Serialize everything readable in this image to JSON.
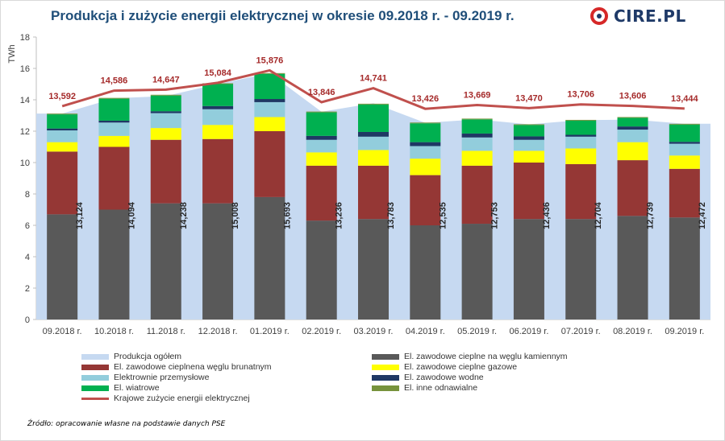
{
  "title": "Produkcja i zużycie energii elektrycznej w okresie 09.2018 r. - 09.2019 r.",
  "logo_text": "CIRE.PL",
  "source": "Źródło: opracowanie własne na podstawie danych PSE",
  "chart_data": {
    "type": "bar",
    "ylabel": "TWh",
    "ylim": [
      0,
      18
    ],
    "yticks": [
      0,
      2,
      4,
      6,
      8,
      10,
      12,
      14,
      16,
      18
    ],
    "grid": false,
    "legend_position": "bottom",
    "categories": [
      "09.2018 r.",
      "10.2018 r.",
      "11.2018 r.",
      "12.2018 r.",
      "01.2019 r.",
      "02.2019 r.",
      "03.2019 r.",
      "04.2019 r.",
      "05.2019 r.",
      "06.2019 r.",
      "07.2019 r.",
      "08.2019 r.",
      "09.2019 r."
    ],
    "area": {
      "name": "Produkcja ogółem",
      "color": "#c6d9f1",
      "values": [
        13.124,
        14.094,
        14.238,
        15.008,
        15.693,
        13.236,
        13.783,
        12.535,
        12.753,
        12.436,
        12.704,
        12.739,
        12.472
      ],
      "labels": [
        "13,124",
        "14,094",
        "14,238",
        "15,008",
        "15,693",
        "13,236",
        "13,783",
        "12,535",
        "12,753",
        "12,436",
        "12,704",
        "12,739",
        "12,472"
      ]
    },
    "stacked_series": [
      {
        "name": "El. zawodowe cieplne na węglu kamiennym",
        "color": "#595959",
        "values": [
          6.7,
          7.0,
          7.4,
          7.4,
          7.8,
          6.3,
          6.4,
          6.0,
          6.1,
          6.4,
          6.4,
          6.6,
          6.5
        ]
      },
      {
        "name": "El. zawodowe cieplnena węglu brunatnym",
        "color": "#953735",
        "values": [
          4.0,
          4.0,
          4.05,
          4.1,
          4.2,
          3.5,
          3.4,
          3.2,
          3.7,
          3.6,
          3.5,
          3.55,
          3.1
        ]
      },
      {
        "name": "El. zawodowe cieplne gazowe",
        "color": "#ffff00",
        "values": [
          0.6,
          0.7,
          0.75,
          0.9,
          0.9,
          0.85,
          1.0,
          1.05,
          0.95,
          0.75,
          1.0,
          1.15,
          0.85
        ]
      },
      {
        "name": "Elektrownie przemysłowe",
        "color": "#92cddc",
        "values": [
          0.75,
          0.85,
          0.95,
          1.0,
          0.95,
          0.8,
          0.85,
          0.8,
          0.85,
          0.7,
          0.75,
          0.8,
          0.75
        ]
      },
      {
        "name": "El. zawodowe wodne",
        "color": "#1f3864",
        "values": [
          0.12,
          0.12,
          0.12,
          0.2,
          0.2,
          0.25,
          0.3,
          0.25,
          0.25,
          0.22,
          0.12,
          0.2,
          0.12
        ]
      },
      {
        "name": "El. wiatrowe",
        "color": "#00b050",
        "values": [
          0.9,
          1.4,
          1.0,
          1.4,
          1.6,
          1.5,
          1.75,
          1.2,
          0.9,
          0.72,
          0.9,
          0.55,
          1.1
        ]
      },
      {
        "name": "El. inne odnawialne",
        "color": "#77933c",
        "values": [
          0.05,
          0.05,
          0.05,
          0.05,
          0.05,
          0.05,
          0.05,
          0.05,
          0.05,
          0.05,
          0.05,
          0.05,
          0.05
        ]
      }
    ],
    "line": {
      "name": "Krajowe zużycie energii elektrycznej",
      "color": "#c0504d",
      "values": [
        13.592,
        14.586,
        14.647,
        15.084,
        15.876,
        13.846,
        14.741,
        13.426,
        13.669,
        13.47,
        13.706,
        13.606,
        13.444
      ],
      "labels": [
        "13,592",
        "14,586",
        "14,647",
        "15,084",
        "15,876",
        "13,846",
        "14,741",
        "13,426",
        "13,669",
        "13,470",
        "13,706",
        "13,606",
        "13,444"
      ]
    },
    "legend": [
      {
        "name": "Produkcja ogółem",
        "kind": "area",
        "color": "#c6d9f1"
      },
      {
        "name": "El. zawodowe cieplne na węglu kamiennym",
        "kind": "bar",
        "color": "#595959"
      },
      {
        "name": "El. zawodowe cieplnena węglu brunatnym",
        "kind": "bar",
        "color": "#953735"
      },
      {
        "name": "El. zawodowe cieplne gazowe",
        "kind": "bar",
        "color": "#ffff00"
      },
      {
        "name": "Elektrownie przemysłowe",
        "kind": "bar",
        "color": "#92cddc"
      },
      {
        "name": "El. zawodowe wodne",
        "kind": "bar",
        "color": "#1f3864"
      },
      {
        "name": "El. wiatrowe",
        "kind": "bar",
        "color": "#00b050"
      },
      {
        "name": "El. inne odnawialne",
        "kind": "bar",
        "color": "#77933c"
      },
      {
        "name": "Krajowe zużycie energii elektrycznej",
        "kind": "line",
        "color": "#c0504d"
      }
    ]
  }
}
